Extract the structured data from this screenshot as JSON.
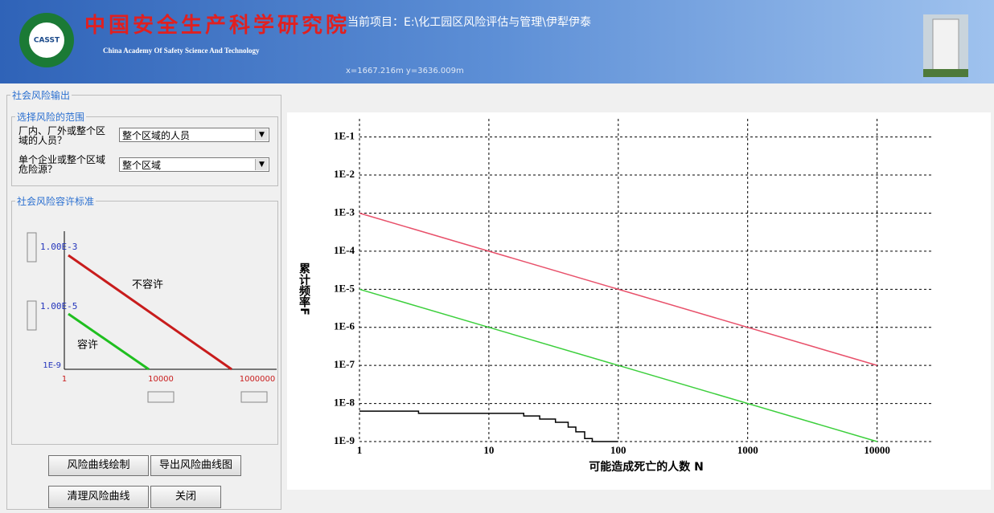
{
  "header": {
    "title_cn": "中国安全生产科学研究院",
    "title_en": "China Academy Of Safety Science And Technology",
    "logo_text": "CASST",
    "project": "当前项目：E:\\化工园区风险评估与管理\\伊犁伊泰",
    "coords": "x=1667.216m  y=3636.009m"
  },
  "panel": {
    "title": "社会风险输出",
    "scope": {
      "title": "选择风险的范围",
      "fields": [
        {
          "label": "厂内、厂外或整个区域的人员？",
          "value": "整个区域的人员"
        },
        {
          "label": "单个企业或整个区域危险源？",
          "value": "整个区域"
        }
      ]
    },
    "criteria": {
      "title": "社会风险容许标准",
      "upper": "1.00E-3",
      "lower": "1.00E-5",
      "y_min": "1E-9",
      "x_labels": [
        "1",
        "10000",
        "1000000"
      ],
      "intolerable": "不容许",
      "tolerable": "容许"
    },
    "buttons": [
      "风险曲线绘制",
      "导出风险曲线图",
      "清理风险曲线",
      "关闭"
    ]
  },
  "chart_data": {
    "type": "line",
    "x_label": "可能造成死亡的人数 N",
    "y_label": "累计频率F",
    "xlim": [
      1,
      27000
    ],
    "ylim": [
      1e-09,
      0.3
    ],
    "log_x": true,
    "log_y": true,
    "grid": true,
    "xticks": [
      1,
      10,
      100,
      1000,
      10000
    ],
    "yticks": [
      {
        "value": 0.1,
        "label": "1E-1"
      },
      {
        "value": 0.01,
        "label": "1E-2"
      },
      {
        "value": 0.001,
        "label": "1E-3"
      },
      {
        "value": 0.0001,
        "label": "1E-4"
      },
      {
        "value": 1e-05,
        "label": "1E-5"
      },
      {
        "value": 1e-06,
        "label": "1E-6"
      },
      {
        "value": 1e-07,
        "label": "1E-7"
      },
      {
        "value": 1e-08,
        "label": "1E-8"
      },
      {
        "value": 1e-09,
        "label": "1E-9"
      }
    ],
    "series": [
      {
        "color": "#e8506a",
        "x": [
          1,
          10000
        ],
        "values": [
          0.001,
          1e-07
        ]
      },
      {
        "color": "#3ccf3c",
        "x": [
          1,
          10000
        ],
        "values": [
          1e-05,
          1e-09
        ]
      },
      {
        "color": "#000000",
        "x": [
          1,
          2.86,
          2.86,
          18.6,
          18.6,
          24.7,
          24.7,
          32.7,
          32.7,
          41,
          41,
          47,
          47,
          55,
          55,
          63,
          63,
          100
        ],
        "values": [
          6.3e-09,
          6.3e-09,
          5.5e-09,
          5.5e-09,
          4.7e-09,
          4.7e-09,
          3.9e-09,
          3.9e-09,
          3.2e-09,
          3.2e-09,
          2.4e-09,
          2.4e-09,
          1.8e-09,
          1.8e-09,
          1.2e-09,
          1.2e-09,
          1e-09,
          1e-09
        ]
      }
    ]
  }
}
